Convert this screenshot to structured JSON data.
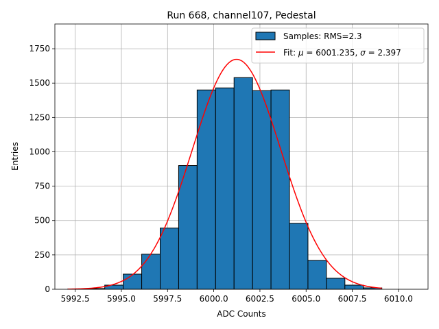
{
  "chart_data": {
    "type": "bar",
    "title": "Run 668, channel107, Pedestal",
    "xlabel": "ADC Counts",
    "ylabel": "Entries",
    "xlim": [
      5991.4,
      6011.6
    ],
    "ylim": [
      0,
      1930
    ],
    "grid": true,
    "legend_position": "top-right",
    "xticks": [
      5992.5,
      5995.0,
      5997.5,
      6000.0,
      6002.5,
      6005.0,
      6007.5,
      6010.0
    ],
    "xtick_labels": [
      "5992.5",
      "5995.0",
      "5997.5",
      "6000.0",
      "6002.5",
      "6005.0",
      "6007.5",
      "6010.0"
    ],
    "yticks": [
      0,
      250,
      500,
      750,
      1000,
      1250,
      1500,
      1750
    ],
    "ytick_labels": [
      "0",
      "250",
      "500",
      "750",
      "1000",
      "1250",
      "1500",
      "1750"
    ],
    "histogram": {
      "name": "Samples: RMS=2.3",
      "color": "#1f77b4",
      "edge_color": "#000000",
      "bin_edges": [
        5992.1,
        5993.1,
        5994.1,
        5995.1,
        5996.1,
        5997.1,
        5998.1,
        5999.1,
        6000.1,
        6001.1,
        6002.1,
        6003.1,
        6004.1,
        6005.1,
        6006.1,
        6007.1,
        6008.1,
        6009.1
      ],
      "counts": [
        2,
        5,
        30,
        110,
        255,
        445,
        900,
        1450,
        1465,
        1540,
        1445,
        1450,
        480,
        210,
        80,
        30,
        10
      ]
    },
    "fit": {
      "name": "Fit: μ = 6001.235, σ = 2.397",
      "color": "#ff0000",
      "mu": 6001.235,
      "sigma": 2.397,
      "amplitude": 1673,
      "x_range": [
        5992.1,
        6009.1
      ]
    },
    "legend": {
      "hist_label": "Samples: RMS=2.3",
      "fit_label_prefix": "Fit: ",
      "fit_mu_symbol": "μ",
      "fit_mu_text": " = 6001.235, ",
      "fit_sigma_symbol": "σ",
      "fit_sigma_text": " = 2.397"
    }
  }
}
